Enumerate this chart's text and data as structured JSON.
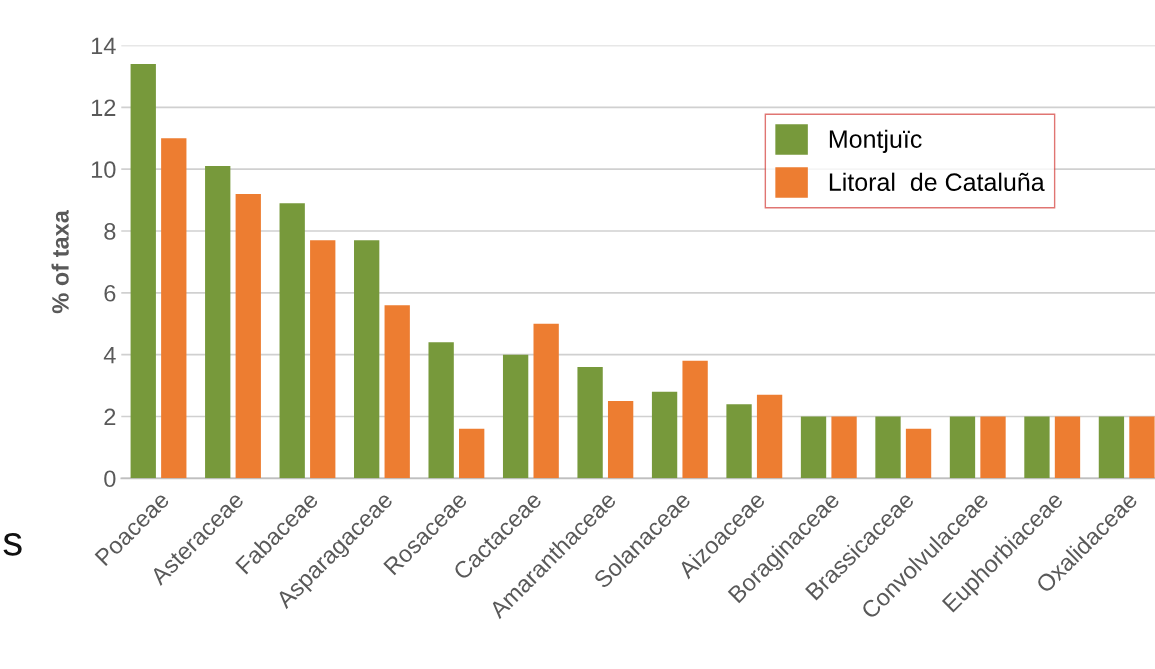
{
  "chart_data": {
    "type": "bar",
    "ylabel": "% of taxa",
    "categories": [
      "Poaceae",
      "Asteraceae",
      "Fabaceae",
      "Asparagaceae",
      "Rosaceae",
      "Cactaceae",
      "Amaranthaceae",
      "Solanaceae",
      "Aizoaceae",
      "Boraginaceae",
      "Brassicaceae",
      "Convolvulaceae",
      "Euphorbiaceae",
      "Oxalidaceae"
    ],
    "series": [
      {
        "name": "Montjuïc",
        "color": "#77993b",
        "values": [
          13.4,
          10.1,
          8.9,
          7.7,
          4.4,
          4.0,
          3.6,
          2.8,
          2.4,
          2.0,
          2.0,
          2.0,
          2.0,
          2.0
        ]
      },
      {
        "name": "Litoral  de Cataluña",
        "color": "#ed7d31",
        "values": [
          11.0,
          9.2,
          7.7,
          5.6,
          1.6,
          5.0,
          2.5,
          3.8,
          2.7,
          2.0,
          1.6,
          2.0,
          2.0,
          2.0
        ]
      }
    ],
    "ylim": [
      0,
      14
    ],
    "yticks": [
      0,
      2,
      4,
      6,
      8,
      10,
      12,
      14
    ],
    "grid": "y",
    "legend": "top right",
    "annotations": [
      "s"
    ]
  }
}
